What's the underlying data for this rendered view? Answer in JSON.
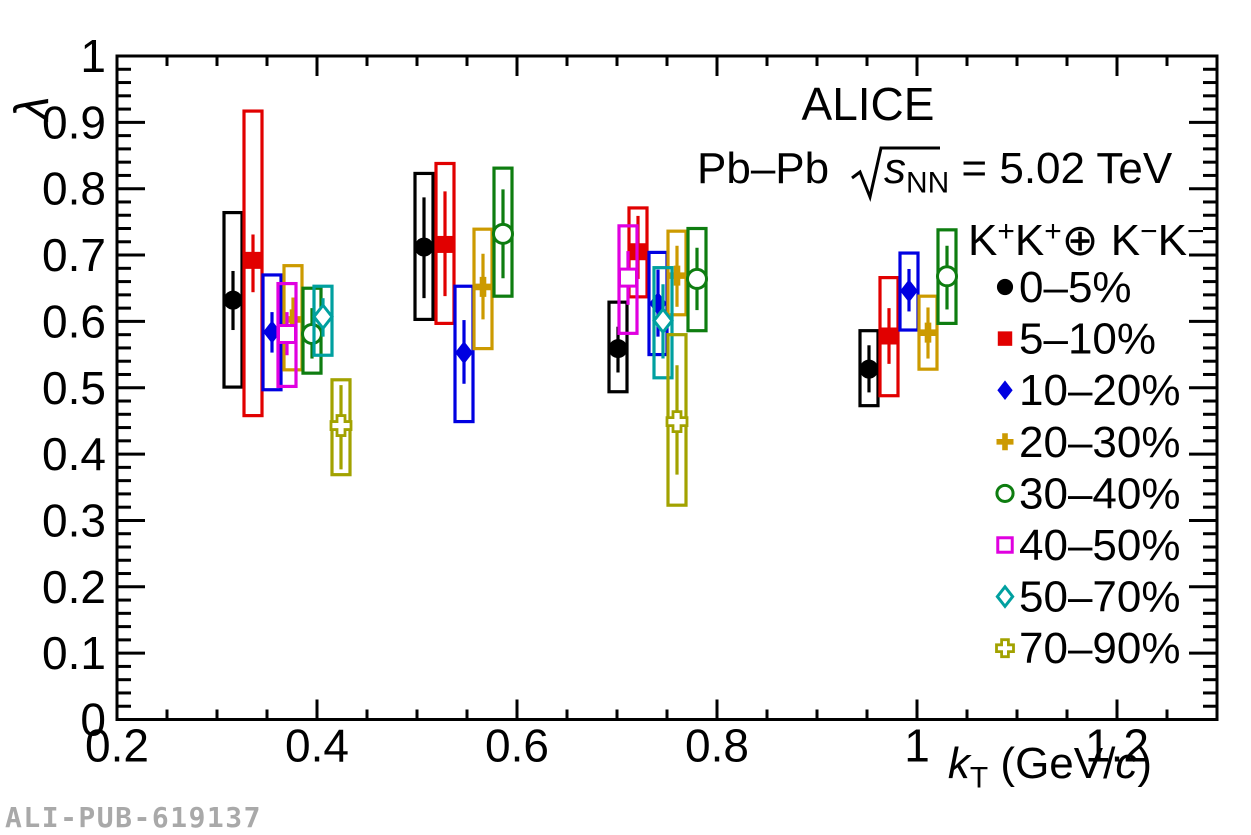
{
  "watermark": "ALI-PUB-619137",
  "annotations": {
    "experiment": "ALICE",
    "collision_system": "Pb–Pb",
    "energy_sqrt_arg": "s",
    "energy_sqrt_sub": "NN",
    "energy_value": " = 5.02 TeV"
  },
  "legend": {
    "header_segments": [
      {
        "t": "K"
      },
      {
        "t": "+",
        "sup": true
      },
      {
        "t": "K"
      },
      {
        "t": "+",
        "sup": true
      },
      {
        "t": "⊕ K"
      },
      {
        "t": "−",
        "sup": true
      },
      {
        "t": "K"
      },
      {
        "t": "−",
        "sup": true
      }
    ]
  },
  "axes": {
    "x_title_segments": [
      {
        "t": "k",
        "italic": true
      },
      {
        "t": "T",
        "sub": true
      },
      {
        "t": " (GeV/"
      },
      {
        "t": "c",
        "italic": true
      },
      {
        "t": ")"
      }
    ],
    "y_title": "λ",
    "x_tick_labels": [
      "0.2",
      "0.4",
      "0.6",
      "0.8",
      "1",
      "1.2"
    ],
    "y_tick_labels": [
      "0",
      "0.1",
      "0.2",
      "0.3",
      "0.4",
      "0.5",
      "0.6",
      "0.7",
      "0.8",
      "0.9",
      "1"
    ]
  },
  "chart_data": {
    "type": "scatter",
    "title": "ALICE",
    "subtitle": "Pb–Pb  √s_NN = 5.02 TeV",
    "xlabel": "k_T (GeV/c)",
    "ylabel": "λ",
    "xlim": [
      0.2,
      1.3
    ],
    "ylim": [
      0,
      1
    ],
    "x_major_ticks": [
      0.2,
      0.4,
      0.6,
      0.8,
      1.0,
      1.2
    ],
    "x_minor_step": 0.05,
    "y_major_step": 0.1,
    "y_minor_step": 0.02,
    "grid": false,
    "legend_position": "right",
    "legend_header": "K+K+ ⊕ K−K−",
    "error_bars": {
      "line": "statistical",
      "box": "systematic"
    },
    "series": [
      {
        "label": "0–5%",
        "color": "#000000",
        "marker": "circle",
        "filled": true,
        "points": [
          {
            "kt": 0.316,
            "lam": 0.632,
            "stat": [
              0.587,
              0.676
            ],
            "sys": [
              0.501,
              0.764
            ]
          },
          {
            "kt": 0.507,
            "lam": 0.712,
            "stat": [
              0.635,
              0.787
            ],
            "sys": [
              0.603,
              0.823
            ]
          },
          {
            "kt": 0.701,
            "lam": 0.559,
            "stat": [
              0.523,
              0.592
            ],
            "sys": [
              0.494,
              0.629
            ]
          },
          {
            "kt": 0.952,
            "lam": 0.528,
            "stat": [
              0.493,
              0.564
            ],
            "sys": [
              0.473,
              0.586
            ]
          }
        ]
      },
      {
        "label": "5–10%",
        "color": "#e10000",
        "marker": "square",
        "filled": true,
        "points": [
          {
            "kt": 0.336,
            "lam": 0.692,
            "stat": [
              0.644,
              0.731
            ],
            "sys": [
              0.458,
              0.917
            ]
          },
          {
            "kt": 0.528,
            "lam": 0.716,
            "stat": [
              0.638,
              0.796
            ],
            "sys": [
              0.597,
              0.838
            ]
          },
          {
            "kt": 0.721,
            "lam": 0.705,
            "stat": [
              0.664,
              0.759
            ],
            "sys": [
              0.637,
              0.771
            ]
          },
          {
            "kt": 0.972,
            "lam": 0.578,
            "stat": [
              0.536,
              0.62
            ],
            "sys": [
              0.488,
              0.666
            ]
          }
        ]
      },
      {
        "label": "10–20%",
        "color": "#0000e1",
        "marker": "diamond",
        "filled": true,
        "points": [
          {
            "kt": 0.355,
            "lam": 0.584,
            "stat": [
              0.553,
              0.614
            ],
            "sys": [
              0.497,
              0.67
            ]
          },
          {
            "kt": 0.547,
            "lam": 0.553,
            "stat": [
              0.506,
              0.602
            ],
            "sys": [
              0.449,
              0.653
            ]
          },
          {
            "kt": 0.741,
            "lam": 0.627,
            "stat": [
              0.577,
              0.678
            ],
            "sys": [
              0.55,
              0.704
            ]
          },
          {
            "kt": 0.992,
            "lam": 0.646,
            "stat": [
              0.615,
              0.679
            ],
            "sys": [
              0.587,
              0.703
            ]
          }
        ]
      },
      {
        "label": "20–30%",
        "color": "#cc9a00",
        "marker": "plus",
        "filled": true,
        "points": [
          {
            "kt": 0.376,
            "lam": 0.603,
            "stat": [
              0.569,
              0.636
            ],
            "sys": [
              0.527,
              0.684
            ]
          },
          {
            "kt": 0.566,
            "lam": 0.652,
            "stat": [
              0.603,
              0.702
            ],
            "sys": [
              0.559,
              0.739
            ]
          },
          {
            "kt": 0.76,
            "lam": 0.669,
            "stat": [
              0.622,
              0.714
            ],
            "sys": [
              0.61,
              0.736
            ]
          },
          {
            "kt": 1.011,
            "lam": 0.583,
            "stat": [
              0.544,
              0.621
            ],
            "sys": [
              0.528,
              0.638
            ]
          }
        ]
      },
      {
        "label": "30–40%",
        "color": "#0e7d10",
        "marker": "circle",
        "filled": false,
        "points": [
          {
            "kt": 0.395,
            "lam": 0.581,
            "stat": [
              0.544,
              0.62
            ],
            "sys": [
              0.522,
              0.65
            ]
          },
          {
            "kt": 0.586,
            "lam": 0.732,
            "stat": [
              0.665,
              0.799
            ],
            "sys": [
              0.638,
              0.831
            ]
          },
          {
            "kt": 0.78,
            "lam": 0.664,
            "stat": [
              0.617,
              0.711
            ],
            "sys": [
              0.586,
              0.74
            ]
          },
          {
            "kt": 1.03,
            "lam": 0.668,
            "stat": [
              0.618,
              0.714
            ],
            "sys": [
              0.597,
              0.738
            ]
          }
        ]
      },
      {
        "label": "40–50%",
        "color": "#e000e0",
        "marker": "square",
        "filled": false,
        "points": [
          {
            "kt": 0.37,
            "lam": 0.581,
            "stat": [
              0.549,
              0.614
            ],
            "sys": [
              0.502,
              0.657
            ]
          },
          {
            "kt": 0.711,
            "lam": 0.666,
            "stat": [
              0.625,
              0.706
            ],
            "sys": [
              0.582,
              0.744
            ]
          }
        ]
      },
      {
        "label": "50–70%",
        "color": "#00a0a0",
        "marker": "diamond",
        "filled": false,
        "points": [
          {
            "kt": 0.406,
            "lam": 0.607,
            "stat": [
              0.577,
              0.635
            ],
            "sys": [
              0.549,
              0.653
            ]
          },
          {
            "kt": 0.746,
            "lam": 0.601,
            "stat": [
              0.544,
              0.656
            ],
            "sys": [
              0.515,
              0.681
            ]
          }
        ]
      },
      {
        "label": "70–90%",
        "color": "#a2a200",
        "marker": "plus",
        "filled": false,
        "points": [
          {
            "kt": 0.424,
            "lam": 0.443,
            "stat": [
              0.377,
              0.504
            ],
            "sys": [
              0.369,
              0.512
            ]
          },
          {
            "kt": 0.76,
            "lam": 0.449,
            "stat": [
              0.369,
              0.534
            ],
            "sys": [
              0.323,
              0.58
            ]
          }
        ]
      }
    ]
  }
}
